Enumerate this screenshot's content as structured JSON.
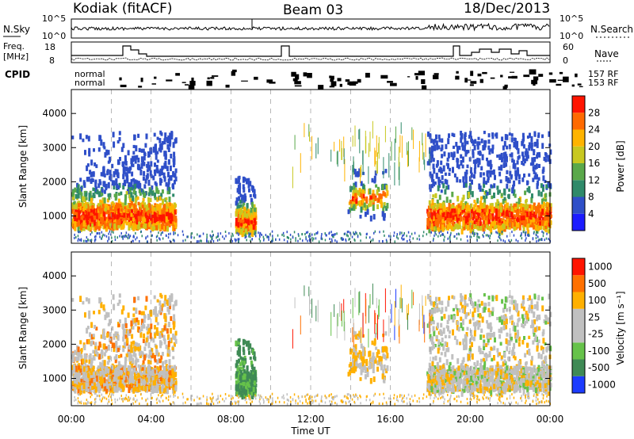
{
  "header": {
    "station": "Kodiak (fitACF)",
    "beam": "Beam 03",
    "date": "18/Dec/2013"
  },
  "strip_labels": {
    "nsky": "N.Sky",
    "nsearch": "N.Search",
    "nsky_top": "10^5",
    "nsky_bottom": "10^0",
    "nsearch_top": "10^5",
    "nsearch_bottom": "10^0",
    "freq": "Freq.",
    "freq_units": "[MHz]",
    "freq_top": "18",
    "freq_bottom": "8",
    "nave": "Nave",
    "nave_top": "60",
    "nave_bottom": "0",
    "cpid": "CPID",
    "cpid_row1_left": "normal",
    "cpid_row2_left": "normal",
    "cpid_row1_right": "157 RF",
    "cpid_row2_right": "153 RF"
  },
  "chart_data": [
    {
      "type": "heatmap",
      "title": "",
      "xlabel": "",
      "ylabel": "Slant Range [km]",
      "colorbar_label": "Power [dB]",
      "x_ticks": [
        "00:00",
        "04:00",
        "08:00",
        "12:00",
        "16:00",
        "20:00",
        "00:00"
      ],
      "y_ticks": [
        1000,
        2000,
        3000,
        4000
      ],
      "ylim": [
        200,
        4700
      ],
      "xlim_hours": [
        0,
        24
      ],
      "colorbar_ticks": [
        4,
        8,
        12,
        16,
        20,
        24,
        28
      ],
      "colorbar_colors": [
        "#1c1cff",
        "#2f4fc8",
        "#2f8a6a",
        "#5aa84a",
        "#c8c820",
        "#ffb400",
        "#ff6a00",
        "#ff1400"
      ],
      "echo_regions": [
        {
          "t0": 0.0,
          "t1": 5.2,
          "r0": 700,
          "r1": 3500,
          "core_r": 1050,
          "note": "strong"
        },
        {
          "t0": 8.2,
          "t1": 9.2,
          "r0": 700,
          "r1": 2200,
          "core_r": 900,
          "note": "moderate"
        },
        {
          "t0": 13.8,
          "t1": 15.8,
          "r0": 1000,
          "r1": 2400,
          "core_r": 1600,
          "note": "weak"
        },
        {
          "t0": 17.8,
          "t1": 24.0,
          "r0": 600,
          "r1": 3500,
          "core_r": 1050,
          "note": "strong"
        }
      ]
    },
    {
      "type": "heatmap",
      "title": "",
      "xlabel": "Time UT",
      "ylabel": "Slant Range [km]",
      "colorbar_label": "Velocity [m s⁻¹]",
      "x_ticks": [
        "00:00",
        "04:00",
        "08:00",
        "12:00",
        "16:00",
        "20:00",
        "00:00"
      ],
      "y_ticks": [
        1000,
        2000,
        3000,
        4000
      ],
      "ylim": [
        200,
        4700
      ],
      "xlim_hours": [
        0,
        24
      ],
      "colorbar_ticks": [
        "1000",
        "500",
        "100",
        "25",
        "-25",
        "-100",
        "-500",
        "-1000"
      ],
      "colorbar_colors": [
        "#1c3cff",
        "#3f8a55",
        "#66c24a",
        "#c0c0c0",
        "#c0c0c0",
        "#ffb000",
        "#ff7000",
        "#ff1400"
      ]
    }
  ]
}
